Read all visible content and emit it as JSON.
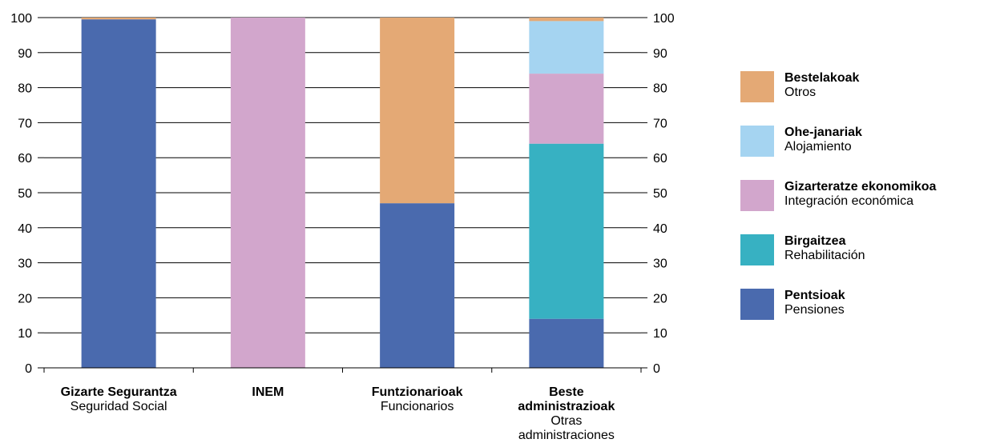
{
  "chart_data": {
    "type": "bar",
    "stacked": true,
    "ylim": [
      0,
      100
    ],
    "yticks": [
      0,
      10,
      20,
      30,
      40,
      50,
      60,
      70,
      80,
      90,
      100
    ],
    "grid": true,
    "legend_position": "right",
    "categories": [
      {
        "label": "Gizarte Segurantza",
        "sublabel": [
          "Seguridad Social"
        ]
      },
      {
        "label": "INEM",
        "sublabel": []
      },
      {
        "label": "Funtzionarioak",
        "sublabel": [
          "Funcionarios"
        ]
      },
      {
        "label": "Beste administrazioak",
        "label_lines": [
          "Beste",
          "administrazioak"
        ],
        "sublabel": [
          "Otras",
          "administraciones"
        ]
      }
    ],
    "series": [
      {
        "name": "Pentsioak",
        "subname": "Pensiones",
        "color": "#4A6AAE",
        "values": [
          99.5,
          0,
          47,
          14
        ]
      },
      {
        "name": "Birgaitzea",
        "subname": "Rehabilitación",
        "color": "#37B1C2",
        "values": [
          0,
          0,
          0,
          50
        ]
      },
      {
        "name": "Gizarteratze ekonomikoa",
        "subname": "Integración económica",
        "color": "#D2A6CC",
        "values": [
          0,
          100,
          0,
          20
        ]
      },
      {
        "name": "Ohe-janariak",
        "subname": "Alojamiento",
        "color": "#A5D4F1",
        "values": [
          0,
          0,
          0,
          15
        ]
      },
      {
        "name": "Bestelakoak",
        "subname": "Otros",
        "color": "#E4A975",
        "values": [
          0.5,
          0,
          53,
          1
        ]
      }
    ]
  }
}
